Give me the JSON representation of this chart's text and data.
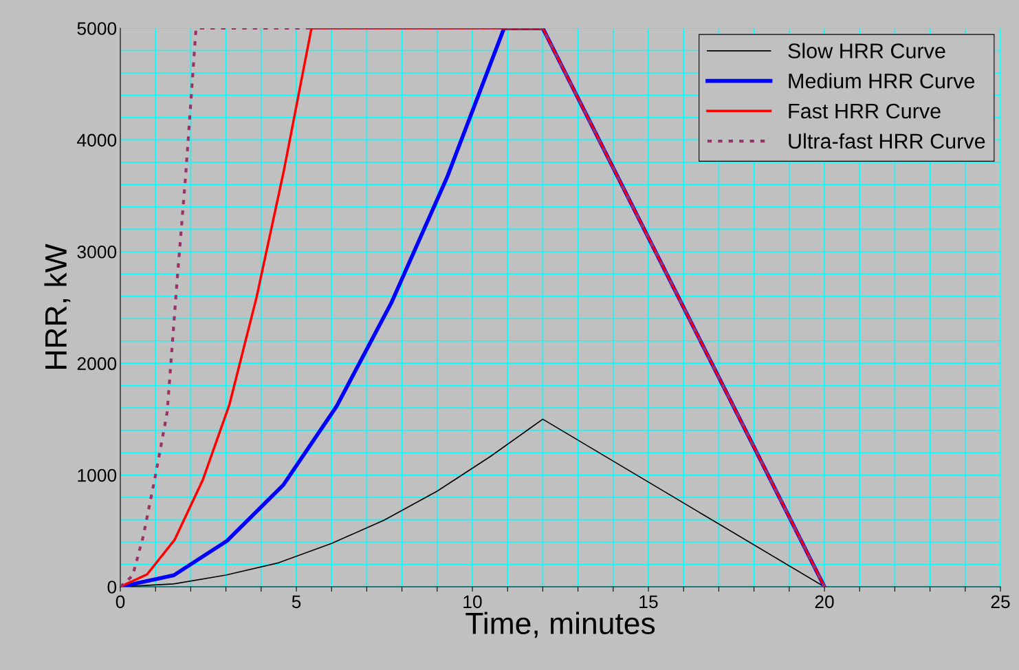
{
  "chart_data": {
    "type": "line",
    "xlabel": "Time, minutes",
    "ylabel": "HRR, kW",
    "xlim": [
      0,
      25
    ],
    "xticks": [
      0,
      {
        "value": 1,
        "label": null
      },
      {
        "value": 2,
        "label": null
      },
      {
        "value": 3,
        "label": null
      },
      {
        "value": 4,
        "label": null
      },
      5,
      {
        "value": 6,
        "label": null
      },
      {
        "value": 7,
        "label": null
      },
      {
        "value": 8,
        "label": null
      },
      {
        "value": 9,
        "label": null
      },
      10,
      {
        "value": 11,
        "label": null
      },
      {
        "value": 12,
        "label": null
      },
      {
        "value": 13,
        "label": null
      },
      {
        "value": 14,
        "label": null
      },
      15,
      {
        "value": 16,
        "label": null
      },
      {
        "value": 17,
        "label": null
      },
      {
        "value": 18,
        "label": null
      },
      {
        "value": 19,
        "label": null
      },
      20,
      {
        "value": 21,
        "label": null
      },
      {
        "value": 22,
        "label": null
      },
      {
        "value": 23,
        "label": null
      },
      {
        "value": 24,
        "label": null
      },
      25
    ],
    "ylim": [
      0,
      5000
    ],
    "yticks": [
      0,
      {
        "value": 200,
        "label": null
      },
      {
        "value": 400,
        "label": null
      },
      {
        "value": 600,
        "label": null
      },
      {
        "value": 800,
        "label": null
      },
      1000,
      {
        "value": 1200,
        "label": null
      },
      {
        "value": 1400,
        "label": null
      },
      {
        "value": 1600,
        "label": null
      },
      {
        "value": 1800,
        "label": null
      },
      2000,
      {
        "value": 2200,
        "label": null
      },
      {
        "value": 2400,
        "label": null
      },
      {
        "value": 2600,
        "label": null
      },
      {
        "value": 2800,
        "label": null
      },
      3000,
      {
        "value": 3200,
        "label": null
      },
      {
        "value": 3400,
        "label": null
      },
      {
        "value": 3600,
        "label": null
      },
      {
        "value": 3800,
        "label": null
      },
      4000,
      {
        "value": 4200,
        "label": null
      },
      {
        "value": 4400,
        "label": null
      },
      {
        "value": 4600,
        "label": null
      },
      {
        "value": 4800,
        "label": null
      },
      5000
    ],
    "grid": true,
    "legend": "top right",
    "marker": "none",
    "series": [
      {
        "name": "Slow HRR Curve",
        "color": "#000000",
        "line_style": "solid",
        "x": [
          0,
          1.5,
          3,
          4.5,
          6,
          7.5,
          9,
          10.5,
          12,
          20
        ],
        "values": [
          0,
          25,
          105,
          215,
          388,
          597,
          856,
          1164,
          1500,
          0
        ]
      },
      {
        "name": "Medium HRR Curve",
        "color": "#0000ff",
        "line_style": "solid",
        "x": [
          0,
          1.52,
          3.03,
          4.63,
          6.15,
          7.7,
          9.28,
          10.9,
          12,
          20
        ],
        "values": [
          0,
          103,
          411,
          911,
          1619,
          2543,
          3664,
          5000,
          5000,
          0
        ]
      },
      {
        "name": "Fast HRR Curve",
        "color": "#ff0000",
        "line_style": "solid",
        "x": [
          0,
          0.76,
          1.54,
          2.34,
          3.1,
          3.87,
          4.65,
          5.43,
          12,
          20
        ],
        "values": [
          0,
          111,
          419,
          954,
          1632,
          2592,
          3732,
          5000,
          5000,
          0
        ]
      },
      {
        "name": "Ultra-fast HRR Curve",
        "color": "#993366",
        "line_style": "dotted",
        "x": [
          0,
          0.35,
          0.65,
          1.0,
          1.33,
          1.62,
          1.86,
          2.15,
          12,
          20
        ],
        "values": [
          0,
          100,
          450,
          1000,
          1560,
          2770,
          3700,
          5000,
          5000,
          0
        ]
      }
    ]
  }
}
